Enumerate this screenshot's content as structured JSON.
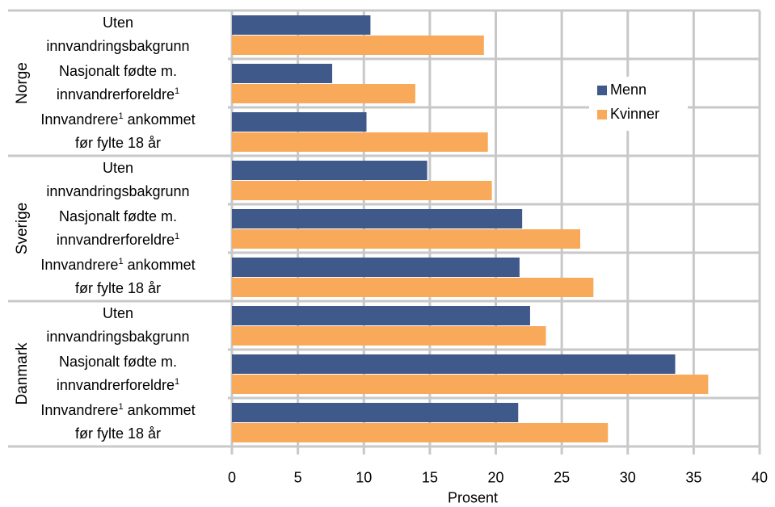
{
  "chart_data": {
    "type": "bar",
    "orientation": "horizontal",
    "xlabel": "Prosent",
    "xlim": [
      0,
      40
    ],
    "xticks": [
      0,
      5,
      10,
      15,
      20,
      25,
      30,
      35,
      40
    ],
    "grid": true,
    "legend_position": "top-right",
    "groups": [
      {
        "name": "Norge",
        "categories": [
          {
            "line1": "Uten",
            "line2": "innvandringsbakgrunn",
            "sup1": "",
            "sup2": "",
            "tail1": "",
            "tail2": ""
          },
          {
            "line1": "Nasjonalt fødte m.",
            "line2": "innvandrerforeldre",
            "sup1": "",
            "sup2": "1",
            "tail1": "",
            "tail2": ""
          },
          {
            "line1": "Innvandrere",
            "line2": "før fylte 18 år",
            "sup1": "1",
            "sup2": "",
            "tail1": " ankommet",
            "tail2": ""
          }
        ]
      },
      {
        "name": "Sverige",
        "categories": [
          {
            "line1": "Uten",
            "line2": "innvandringsbakgrunn",
            "sup1": "",
            "sup2": "",
            "tail1": "",
            "tail2": ""
          },
          {
            "line1": "Nasjonalt fødte m.",
            "line2": "innvandrerforeldre",
            "sup1": "",
            "sup2": "1",
            "tail1": "",
            "tail2": ""
          },
          {
            "line1": "Innvandrere",
            "line2": "før fylte 18 år",
            "sup1": "1",
            "sup2": "",
            "tail1": " ankommet",
            "tail2": ""
          }
        ]
      },
      {
        "name": "Danmark",
        "categories": [
          {
            "line1": "Uten",
            "line2": "innvandringsbakgrunn",
            "sup1": "",
            "sup2": "",
            "tail1": "",
            "tail2": ""
          },
          {
            "line1": "Nasjonalt fødte m.",
            "line2": "innvandrerforeldre",
            "sup1": "",
            "sup2": "1",
            "tail1": "",
            "tail2": ""
          },
          {
            "line1": "Innvandrere",
            "line2": "før fylte 18 år",
            "sup1": "1",
            "sup2": "",
            "tail1": " ankommet",
            "tail2": ""
          }
        ]
      }
    ],
    "series": [
      {
        "name": "Menn",
        "color": "#3f5a8a",
        "values": [
          10.5,
          7.6,
          10.2,
          14.8,
          22.0,
          21.8,
          22.6,
          33.6,
          21.7
        ]
      },
      {
        "name": "Kvinner",
        "color": "#f8a95a",
        "values": [
          19.1,
          13.9,
          19.4,
          19.7,
          26.4,
          27.4,
          23.8,
          36.1,
          28.5
        ]
      }
    ]
  }
}
